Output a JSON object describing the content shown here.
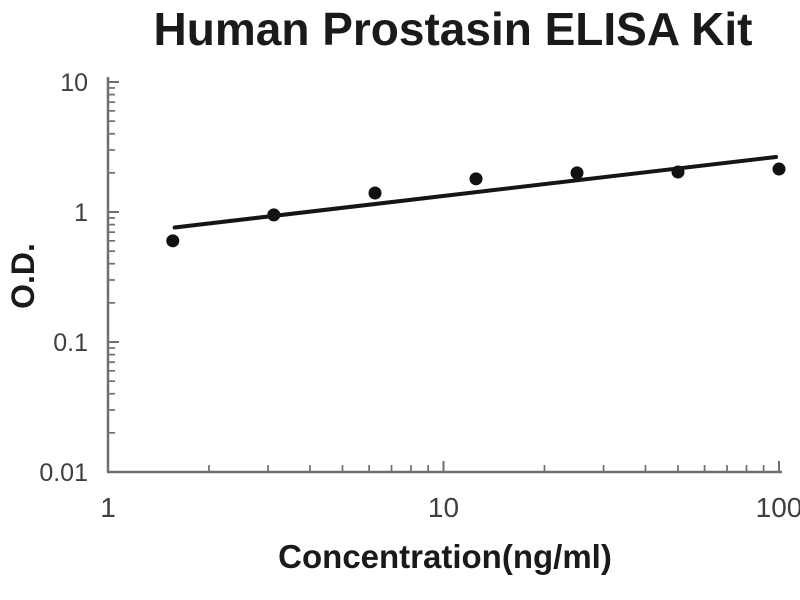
{
  "chart_data": {
    "type": "scatter",
    "title": "Human Prostasin ELISA Kit",
    "xlabel": "Concentration(ng/ml)",
    "ylabel": "O.D.",
    "x_scale": "log",
    "y_scale": "log",
    "xlim": [
      1,
      100
    ],
    "ylim": [
      0.01,
      10
    ],
    "x_ticks": [
      1,
      10,
      100
    ],
    "x_tick_labels": [
      "1",
      "10",
      "100"
    ],
    "y_ticks": [
      0.01,
      0.1,
      1,
      10
    ],
    "y_tick_labels": [
      "0.01",
      "0.1",
      "1",
      "10"
    ],
    "grid": false,
    "legend": "none",
    "series": [
      {
        "name": "standard-points",
        "type": "scatter",
        "x": [
          1.56,
          3.12,
          6.25,
          12.5,
          25,
          50,
          100
        ],
        "y": [
          0.6,
          0.95,
          1.4,
          1.8,
          2.0,
          2.03,
          2.14
        ]
      },
      {
        "name": "fit-line",
        "type": "line",
        "x": [
          1.58,
          98
        ],
        "y": [
          0.76,
          2.65
        ]
      }
    ],
    "colors": {
      "points": "#111111",
      "line": "#151515",
      "axis": "#6f6f6f",
      "tick_labels": "#3f3f3f",
      "text": "#1a1a1a",
      "background": "#ffffff"
    }
  }
}
